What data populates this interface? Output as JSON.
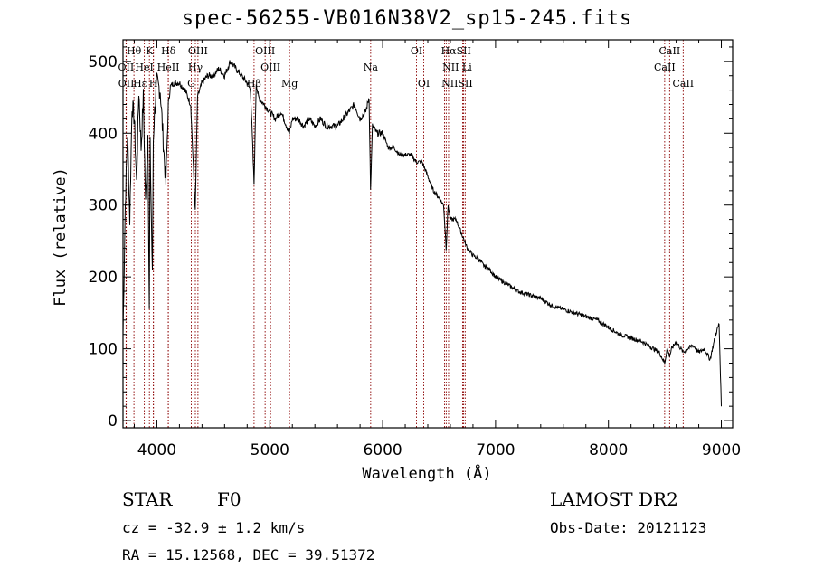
{
  "title": "spec-56255-VB016N38V2_sp15-245.fits",
  "info": {
    "object_class": "STAR",
    "subclass": "F0",
    "survey": "LAMOST DR2",
    "redshift": "cz = -32.9 ± 1.2 km/s",
    "obs_date": "Obs-Date: 20121123",
    "coords": "RA =  15.12568, DEC =  39.51372"
  },
  "chart_data": {
    "type": "line",
    "xlabel": "Wavelength (Å)",
    "ylabel": "Flux (relative)",
    "xlim": [
      3700,
      9100
    ],
    "ylim": [
      -10,
      530
    ],
    "xticks": [
      4000,
      5000,
      6000,
      7000,
      8000,
      9000
    ],
    "yticks": [
      0,
      100,
      200,
      300,
      400,
      500
    ],
    "line_color": "#000000",
    "marker_color": "#8b0000",
    "spectrum": {
      "x": [
        3700,
        3720,
        3740,
        3760,
        3780,
        3800,
        3820,
        3840,
        3860,
        3880,
        3900,
        3920,
        3933,
        3940,
        3960,
        3968,
        3980,
        4000,
        4030,
        4060,
        4080,
        4101,
        4120,
        4150,
        4200,
        4250,
        4300,
        4340,
        4360,
        4400,
        4450,
        4500,
        4550,
        4600,
        4650,
        4700,
        4750,
        4800,
        4830,
        4861,
        4880,
        4900,
        4950,
        5000,
        5050,
        5100,
        5150,
        5175,
        5200,
        5250,
        5300,
        5350,
        5400,
        5450,
        5500,
        5550,
        5600,
        5650,
        5700,
        5750,
        5800,
        5850,
        5880,
        5893,
        5910,
        5950,
        6000,
        6050,
        6100,
        6150,
        6200,
        6250,
        6300,
        6350,
        6400,
        6450,
        6500,
        6540,
        6563,
        6580,
        6600,
        6650,
        6700,
        6750,
        6800,
        6850,
        6900,
        6950,
        7000,
        7100,
        7200,
        7300,
        7400,
        7500,
        7600,
        7700,
        7800,
        7900,
        8000,
        8100,
        8200,
        8300,
        8400,
        8450,
        8498,
        8520,
        8542,
        8560,
        8600,
        8662,
        8700,
        8750,
        8800,
        8850,
        8900,
        8950,
        8980,
        9000
      ],
      "y": [
        120,
        300,
        400,
        280,
        440,
        420,
        330,
        460,
        380,
        450,
        300,
        410,
        150,
        380,
        200,
        390,
        430,
        470,
        460,
        380,
        330,
        440,
        465,
        470,
        470,
        460,
        440,
        290,
        450,
        470,
        480,
        480,
        490,
        480,
        500,
        490,
        480,
        470,
        460,
        330,
        470,
        450,
        440,
        430,
        420,
        430,
        410,
        400,
        420,
        420,
        410,
        420,
        410,
        420,
        410,
        410,
        410,
        420,
        430,
        440,
        420,
        430,
        450,
        320,
        410,
        400,
        400,
        380,
        380,
        370,
        370,
        370,
        360,
        360,
        340,
        320,
        310,
        300,
        240,
        300,
        280,
        280,
        260,
        240,
        230,
        225,
        215,
        210,
        200,
        190,
        180,
        175,
        170,
        160,
        155,
        150,
        145,
        140,
        130,
        120,
        115,
        110,
        100,
        95,
        80,
        100,
        90,
        100,
        110,
        95,
        100,
        105,
        95,
        100,
        85,
        120,
        135,
        20
      ]
    },
    "lines": [
      {
        "label": "Hθ",
        "x": 3797
      },
      {
        "label": "OII",
        "x": 3727
      },
      {
        "label": "OII",
        "x": 3729
      },
      {
        "label": "HeI",
        "x": 3889
      },
      {
        "label": "K",
        "x": 3934
      },
      {
        "label": "H",
        "x": 3969
      },
      {
        "label": "Hε",
        "x": 3970
      },
      {
        "label": "Hδ",
        "x": 4102
      },
      {
        "label": "HeII",
        "x": 4101
      },
      {
        "label": "G",
        "x": 4305
      },
      {
        "label": "OIII",
        "x": 4364
      },
      {
        "label": "Hγ",
        "x": 4341
      },
      {
        "label": "Hβ",
        "x": 4861
      },
      {
        "label": "OIII",
        "x": 4959
      },
      {
        "label": "OIII",
        "x": 5007
      },
      {
        "label": "Mg",
        "x": 5175
      },
      {
        "label": "Na",
        "x": 5894
      },
      {
        "label": "OI",
        "x": 6300
      },
      {
        "label": "OI",
        "x": 6364
      },
      {
        "label": "Hα",
        "x": 6563
      },
      {
        "label": "NII",
        "x": 6548
      },
      {
        "label": "NII",
        "x": 6584
      },
      {
        "label": "SII",
        "x": 6717
      },
      {
        "label": "Li",
        "x": 6708
      },
      {
        "label": "SII",
        "x": 6731
      },
      {
        "label": "CaII",
        "x": 8498
      },
      {
        "label": "CaII",
        "x": 8542
      },
      {
        "label": "CaII",
        "x": 8662
      }
    ],
    "label_rows": [
      {
        "text": "Hθ",
        "x": 3797,
        "row": 1
      },
      {
        "text": "K",
        "x": 3934,
        "row": 1
      },
      {
        "text": "Hδ",
        "x": 4102,
        "row": 1
      },
      {
        "text": "OIII",
        "x": 4364,
        "row": 1
      },
      {
        "text": "OIII",
        "x": 4959,
        "row": 1
      },
      {
        "text": "OI",
        "x": 6300,
        "row": 1
      },
      {
        "text": "HαSII",
        "x": 6650,
        "row": 1
      },
      {
        "text": "CaII",
        "x": 8542,
        "row": 1
      },
      {
        "text": "OII",
        "x": 3727,
        "row": 2
      },
      {
        "text": "HeI",
        "x": 3889,
        "row": 2
      },
      {
        "text": "HeII",
        "x": 4101,
        "row": 2
      },
      {
        "text": "Hγ",
        "x": 4341,
        "row": 2
      },
      {
        "text": "OIII",
        "x": 5007,
        "row": 2
      },
      {
        "text": "Na",
        "x": 5894,
        "row": 2
      },
      {
        "text": "NII Li",
        "x": 6660,
        "row": 2
      },
      {
        "text": "CaII",
        "x": 8498,
        "row": 2
      },
      {
        "text": "OII",
        "x": 3729,
        "row": 3
      },
      {
        "text": "Hε",
        "x": 3850,
        "row": 3
      },
      {
        "text": "H",
        "x": 3969,
        "row": 3
      },
      {
        "text": "G",
        "x": 4305,
        "row": 3
      },
      {
        "text": "Hβ",
        "x": 4861,
        "row": 3
      },
      {
        "text": "Mg",
        "x": 5175,
        "row": 3
      },
      {
        "text": "OI",
        "x": 6364,
        "row": 3
      },
      {
        "text": "NIISII",
        "x": 6660,
        "row": 3
      },
      {
        "text": "CaII",
        "x": 8662,
        "row": 3
      }
    ]
  }
}
